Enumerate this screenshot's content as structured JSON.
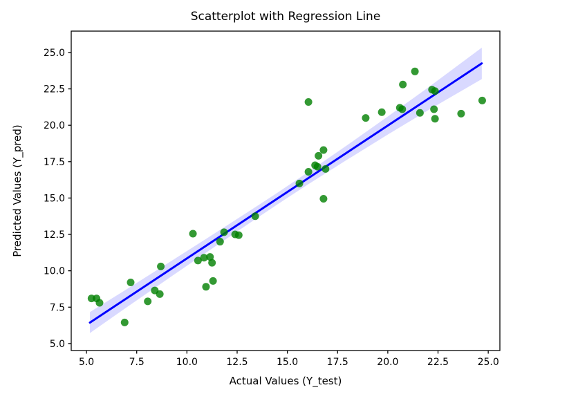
{
  "figure": {
    "background_color": "#ffffff",
    "spine_color": "#000000"
  },
  "chart_data": {
    "type": "scatter",
    "title": "Scatterplot with Regression Line",
    "xlabel": "Actual Values (Y_test)",
    "ylabel": "Predicted Values (Y_pred)",
    "grid": false,
    "legend": null,
    "xlim": [
      4.24,
      25.58
    ],
    "ylim": [
      4.52,
      26.47
    ],
    "x_ticks": [
      5.0,
      7.5,
      10.0,
      12.5,
      15.0,
      17.5,
      20.0,
      22.5,
      25.0
    ],
    "y_ticks": [
      5.0,
      7.5,
      10.0,
      12.5,
      15.0,
      17.5,
      20.0,
      22.5,
      25.0
    ],
    "tick_decimals": 1,
    "series": [
      {
        "name": "scatter-points",
        "type": "scatter",
        "color": "#008000",
        "alpha": 0.8,
        "marker_radius": 5.5,
        "points": [
          [
            5.25,
            8.1
          ],
          [
            5.5,
            8.1
          ],
          [
            5.65,
            7.8
          ],
          [
            6.9,
            6.45
          ],
          [
            7.2,
            9.2
          ],
          [
            8.05,
            7.9
          ],
          [
            8.4,
            8.65
          ],
          [
            8.65,
            8.4
          ],
          [
            8.7,
            10.3
          ],
          [
            10.3,
            12.55
          ],
          [
            10.55,
            10.7
          ],
          [
            10.85,
            10.9
          ],
          [
            10.95,
            8.9
          ],
          [
            11.15,
            10.95
          ],
          [
            11.25,
            10.55
          ],
          [
            11.3,
            9.3
          ],
          [
            11.65,
            12.0
          ],
          [
            11.85,
            12.65
          ],
          [
            12.4,
            12.5
          ],
          [
            12.58,
            12.45
          ],
          [
            13.4,
            13.75
          ],
          [
            15.6,
            16.0
          ],
          [
            16.05,
            16.8
          ],
          [
            16.05,
            21.6
          ],
          [
            16.38,
            17.25
          ],
          [
            16.5,
            17.15
          ],
          [
            16.55,
            17.9
          ],
          [
            16.8,
            14.95
          ],
          [
            16.8,
            18.3
          ],
          [
            16.9,
            17.0
          ],
          [
            18.9,
            20.5
          ],
          [
            19.7,
            20.9
          ],
          [
            20.6,
            21.2
          ],
          [
            20.72,
            21.1
          ],
          [
            20.75,
            22.8
          ],
          [
            21.35,
            23.7
          ],
          [
            21.6,
            20.85
          ],
          [
            22.2,
            22.45
          ],
          [
            22.35,
            22.35
          ],
          [
            22.3,
            21.1
          ],
          [
            22.35,
            20.45
          ],
          [
            23.65,
            20.8
          ],
          [
            24.7,
            21.7
          ]
        ]
      },
      {
        "name": "regression-line",
        "type": "line",
        "color": "#0000ff",
        "width": 3,
        "x_start": 5.17,
        "x_end": 24.68,
        "slope": 0.913,
        "intercept": 1.72
      },
      {
        "name": "confidence-band",
        "type": "band",
        "color": "#0000ff",
        "alpha": 0.15,
        "x": [
          5.17,
          7.0,
          9.0,
          11.0,
          13.0,
          14.5,
          16.0,
          18.0,
          20.0,
          22.0,
          24.68
        ],
        "half_width": [
          0.72,
          0.62,
          0.54,
          0.47,
          0.42,
          0.4,
          0.42,
          0.5,
          0.62,
          0.78,
          1.08
        ]
      }
    ]
  }
}
